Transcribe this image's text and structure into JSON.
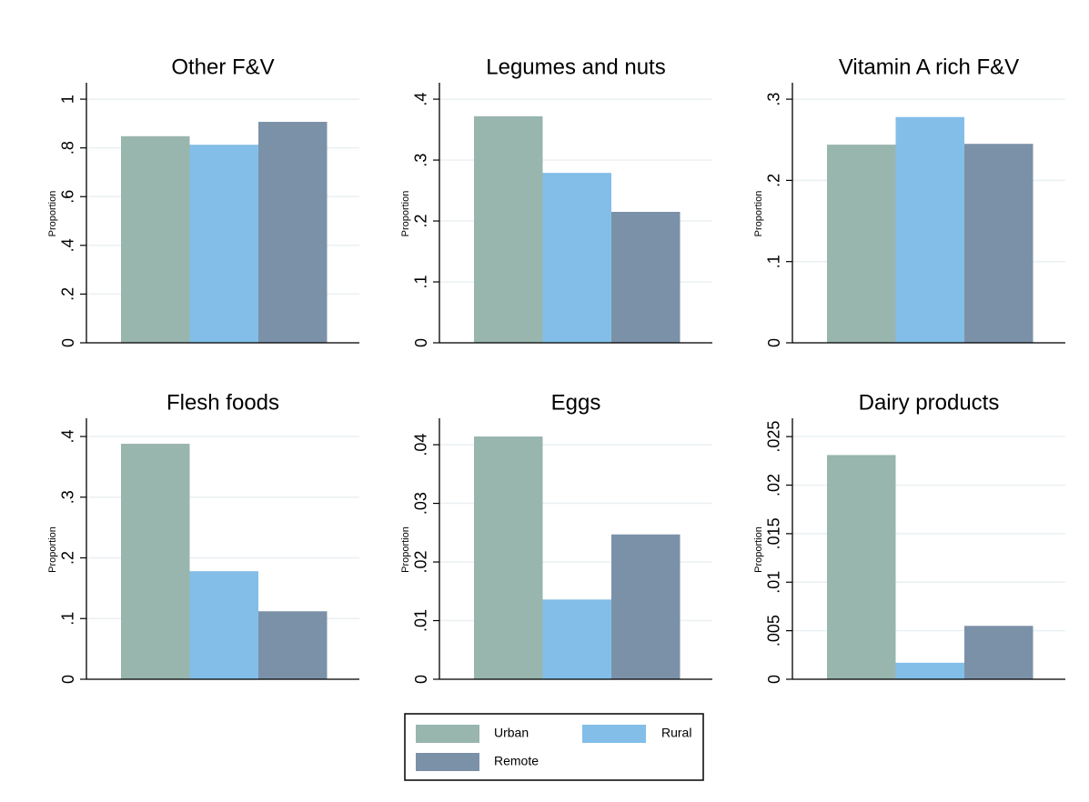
{
  "legend": {
    "series": [
      {
        "name": "Urban",
        "color": "#98b5ae"
      },
      {
        "name": "Rural",
        "color": "#83bee8"
      },
      {
        "name": "Remote",
        "color": "#7b91a8"
      }
    ]
  },
  "chart_data": [
    {
      "type": "bar",
      "title": "Other F&V",
      "ylabel": "Proportion",
      "values": [
        0.848,
        0.813,
        0.907
      ],
      "ylim": [
        0,
        1.06
      ],
      "yticks": [
        0,
        {
          "value": 0.2,
          "label": ".2"
        },
        {
          "value": 0.4,
          "label": ".4"
        },
        {
          "value": 0.6,
          "label": ".6"
        },
        {
          "value": 0.8,
          "label": ".8"
        },
        1
      ],
      "grid": true
    },
    {
      "type": "bar",
      "title": "Legumes and nuts",
      "ylabel": "Proportion",
      "values": [
        0.372,
        0.279,
        0.215
      ],
      "ylim": [
        0,
        0.424
      ],
      "yticks": [
        0,
        {
          "value": 0.1,
          "label": ".1"
        },
        {
          "value": 0.2,
          "label": ".2"
        },
        {
          "value": 0.3,
          "label": ".3"
        },
        {
          "value": 0.4,
          "label": ".4"
        }
      ],
      "grid": true
    },
    {
      "type": "bar",
      "title": "Vitamin A rich F&V",
      "ylabel": "Proportion",
      "values": [
        0.244,
        0.278,
        0.245
      ],
      "ylim": [
        0,
        0.318
      ],
      "yticks": [
        0,
        {
          "value": 0.1,
          "label": ".1"
        },
        {
          "value": 0.2,
          "label": ".2"
        },
        {
          "value": 0.3,
          "label": ".3"
        }
      ],
      "grid": true
    },
    {
      "type": "bar",
      "title": "Flesh foods",
      "ylabel": "Proportion",
      "values": [
        0.388,
        0.178,
        0.112
      ],
      "ylim": [
        0,
        0.427
      ],
      "yticks": [
        0,
        {
          "value": 0.1,
          "label": ".1"
        },
        {
          "value": 0.2,
          "label": ".2"
        },
        {
          "value": 0.3,
          "label": ".3"
        },
        {
          "value": 0.4,
          "label": ".4"
        }
      ],
      "grid": true
    },
    {
      "type": "bar",
      "title": "Eggs",
      "ylabel": "Proportion",
      "values": [
        0.0414,
        0.0136,
        0.0247
      ],
      "ylim": [
        0,
        0.0442
      ],
      "yticks": [
        0,
        {
          "value": 0.01,
          "label": ".01"
        },
        {
          "value": 0.02,
          "label": ".02"
        },
        {
          "value": 0.03,
          "label": ".03"
        },
        {
          "value": 0.04,
          "label": ".04"
        }
      ],
      "grid": true
    },
    {
      "type": "bar",
      "title": "Dairy products",
      "ylabel": "Proportion",
      "values": [
        0.0231,
        0.0017,
        0.0055
      ],
      "ylim": [
        0,
        0.0267
      ],
      "yticks": [
        0,
        {
          "value": 0.005,
          "label": ".005"
        },
        {
          "value": 0.01,
          "label": ".01"
        },
        {
          "value": 0.015,
          "label": ".015"
        },
        {
          "value": 0.02,
          "label": ".02"
        },
        {
          "value": 0.025,
          "label": ".025"
        }
      ],
      "grid": true
    }
  ]
}
